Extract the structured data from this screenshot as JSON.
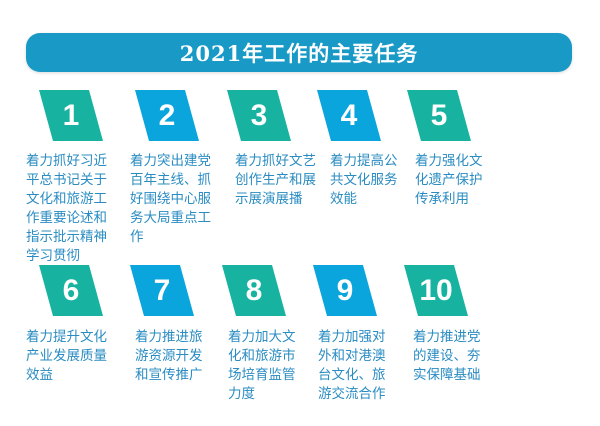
{
  "title": "2021年工作的主要任务",
  "colors": {
    "title_bar": "#1899c6",
    "green": "#17b3a0",
    "blue": "#0aa5dc",
    "text": "#2a8cc2"
  },
  "tasks": [
    {
      "number": "1",
      "color": "green",
      "text": "着力抓好习近平总书记关于文化和旅游工作重要论述和指示批示精神学习贯彻"
    },
    {
      "number": "2",
      "color": "blue",
      "text": "着力突出建党百年主线、抓好围绕中心服务大局重点工作"
    },
    {
      "number": "3",
      "color": "green",
      "text": "着力抓好文艺创作生产和展示展演展播"
    },
    {
      "number": "4",
      "color": "blue",
      "text": "着力提高公共文化服务效能"
    },
    {
      "number": "5",
      "color": "green",
      "text": "着力强化文化遗产保护传承利用"
    },
    {
      "number": "6",
      "color": "green",
      "text": "着力提升文化产业发展质量效益"
    },
    {
      "number": "7",
      "color": "blue",
      "text": "着力推进旅游资源开发和宣传推广"
    },
    {
      "number": "8",
      "color": "green",
      "text": "着力加大文化和旅游市场培育监管力度"
    },
    {
      "number": "9",
      "color": "blue",
      "text": "着力加强对外和对港澳台文化、旅游交流合作"
    },
    {
      "number": "10",
      "color": "green",
      "text": "着力推进党的建设、夯实保障基础"
    }
  ]
}
